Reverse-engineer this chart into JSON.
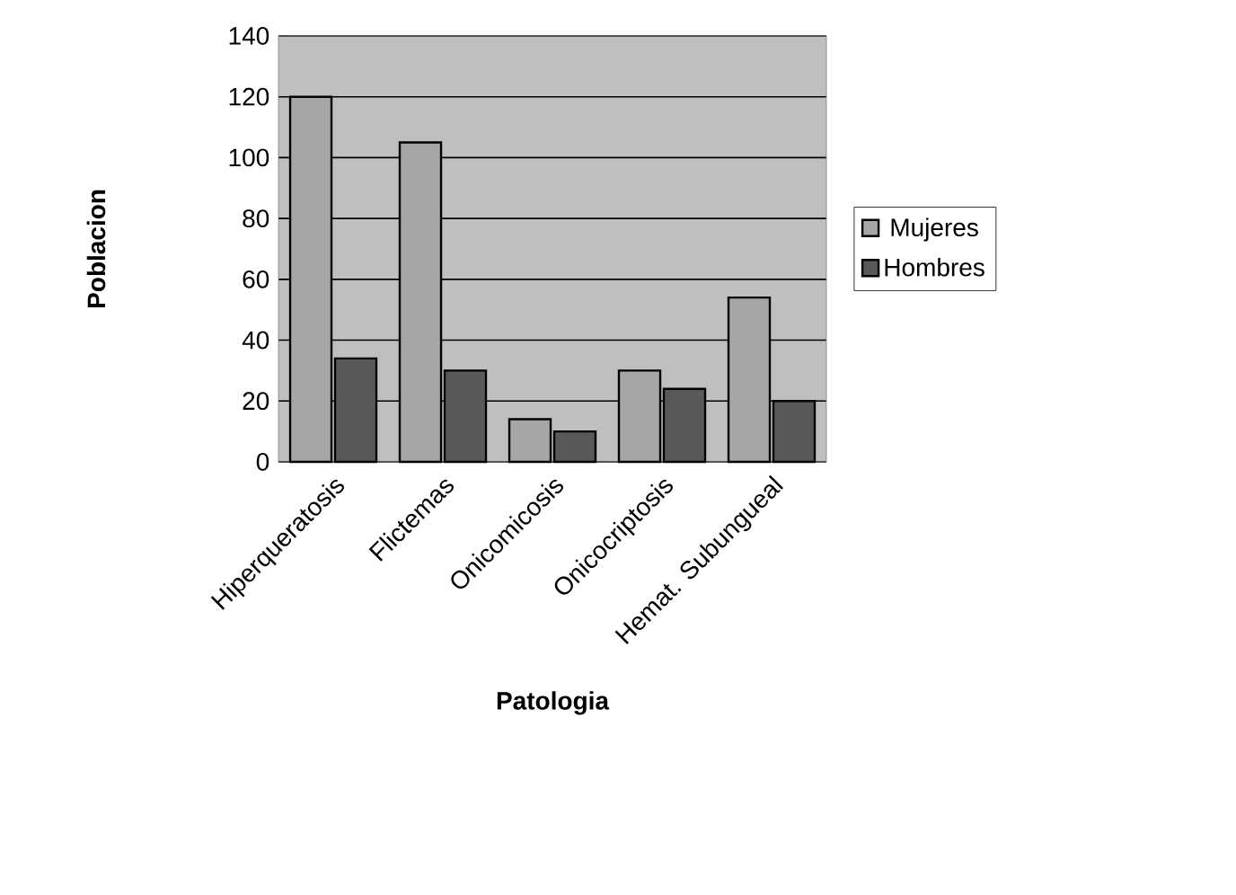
{
  "chart_data": {
    "type": "bar",
    "xlabel": "Patologia",
    "ylabel": "Poblacion",
    "categories": [
      "Hiperqueratosis",
      "Flictemas",
      "Onicomicosis",
      "Onicocriptosis",
      "Hemat. Subungueal"
    ],
    "series": [
      {
        "name": "Mujeres",
        "color": "#a6a6a6",
        "values": [
          120,
          105,
          14,
          30,
          54
        ]
      },
      {
        "name": "Hombres",
        "color": "#595959",
        "values": [
          34,
          30,
          10,
          24,
          20
        ]
      }
    ],
    "ylim": [
      0,
      140
    ],
    "yticks": [
      0,
      20,
      40,
      60,
      80,
      100,
      120,
      140
    ],
    "grid": "y",
    "legend": "right"
  }
}
